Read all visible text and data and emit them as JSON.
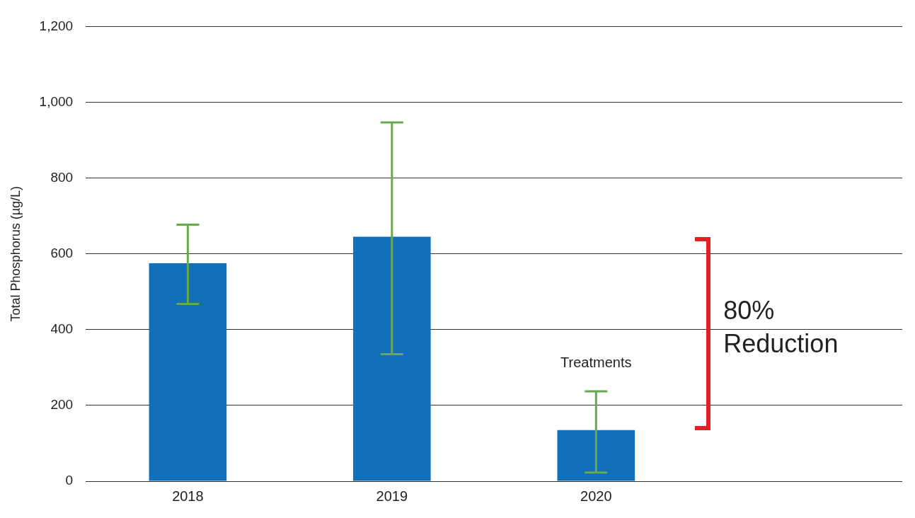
{
  "chart_data": {
    "type": "bar",
    "ylabel": "Total Phosphorus (µg/L)",
    "categories": [
      "2018",
      "2019",
      "2020",
      null
    ],
    "values": [
      575,
      645,
      135,
      null
    ],
    "errors": [
      [
        468,
        677
      ],
      [
        335,
        947
      ],
      [
        23,
        237
      ],
      null
    ],
    "color": "#1170b9",
    "ylim": [
      0,
      1200
    ],
    "yticks": [
      0,
      200,
      400,
      600,
      800,
      {
        "value": 1000,
        "label": "1,000"
      },
      {
        "value": 1200,
        "label": "1,200"
      }
    ],
    "grid": "y",
    "annotations": [
      "Treatments",
      "80% Reduction"
    ]
  }
}
